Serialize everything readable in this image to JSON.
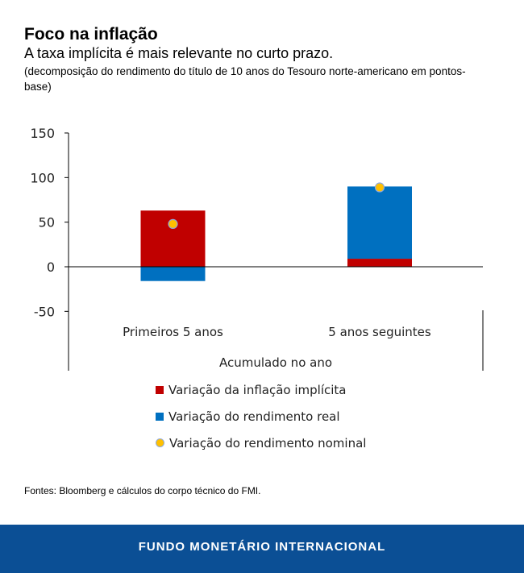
{
  "header": {
    "title": "Foco na inflação",
    "subtitle": "A taxa implícita é mais relevante no curto prazo.",
    "note": "(decomposição do rendimento do título de 10 anos do Tesouro norte-americano em pontos-base)"
  },
  "chart_data": {
    "type": "bar",
    "stacked": true,
    "categories": [
      "Primeiros 5 anos",
      "5 anos seguintes"
    ],
    "xlabel": "Acumulado no ano",
    "ylim": [
      -50,
      150
    ],
    "yticks": [
      150,
      100,
      50,
      0,
      -50
    ],
    "series": [
      {
        "name": "Variação da inflação implícita",
        "kind": "bar",
        "color": "#c00000",
        "values": [
          63,
          9
        ]
      },
      {
        "name": "Variação do rendimento real",
        "kind": "bar",
        "color": "#0070c0",
        "values": [
          -16,
          81
        ]
      },
      {
        "name": "Variação do rendimento nominal",
        "kind": "point",
        "color": "#ffc000",
        "values": [
          48,
          89
        ]
      }
    ],
    "legend": "bottom"
  },
  "source": "Fontes: Bloomberg e cálculos do corpo técnico do FMI.",
  "footer": "FUNDO MONETÁRIO INTERNACIONAL"
}
